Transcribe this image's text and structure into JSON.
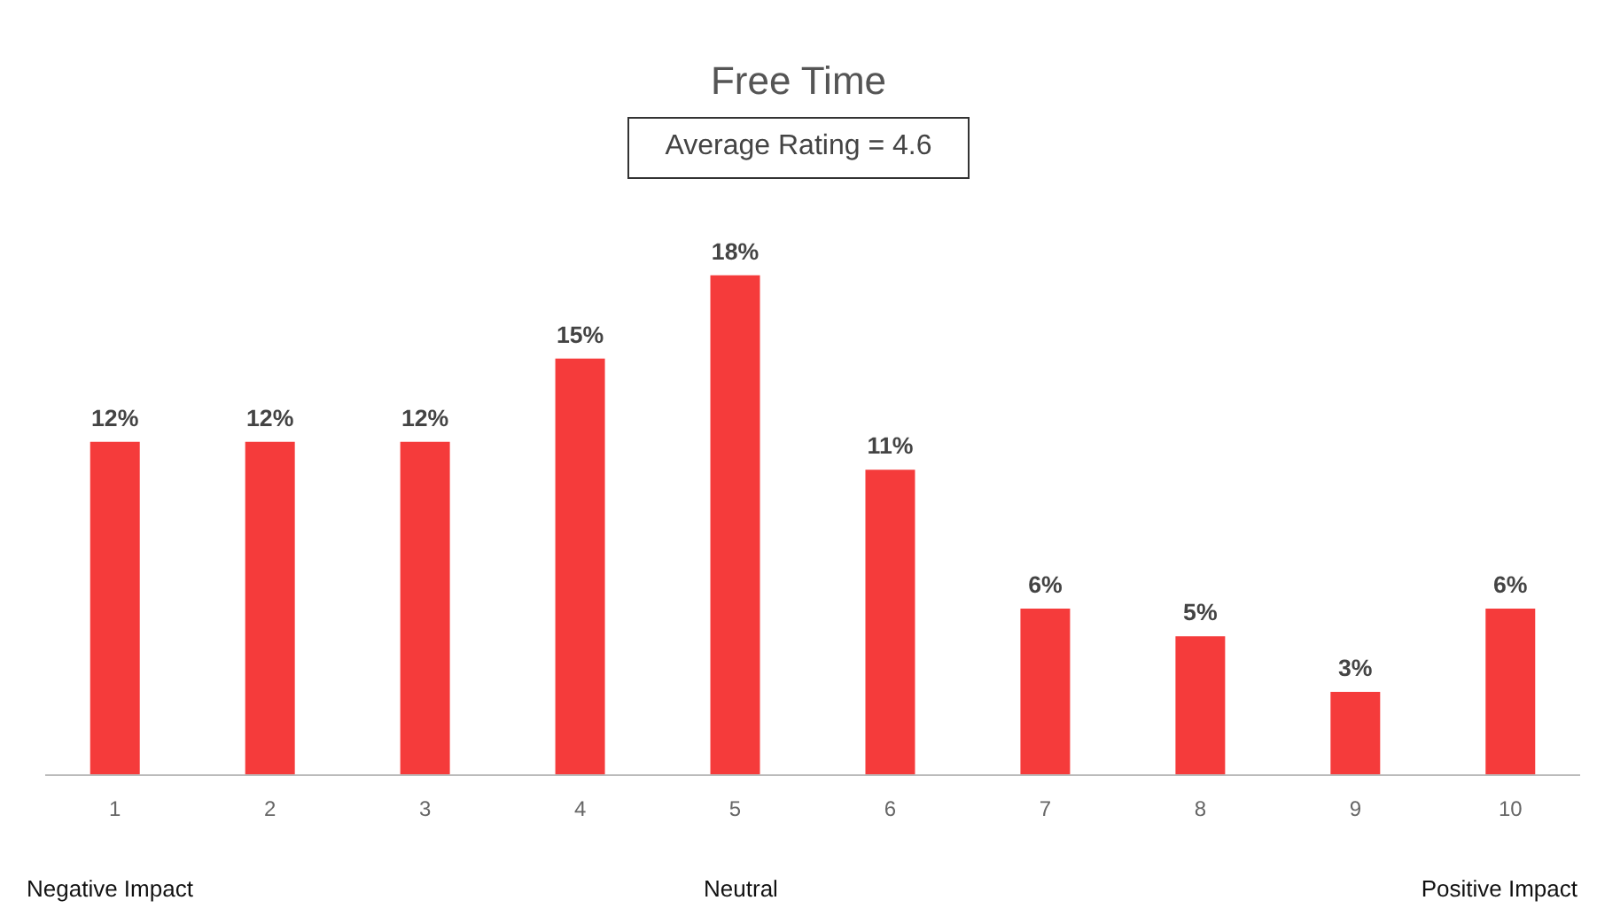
{
  "chart_data": {
    "type": "bar",
    "title": "Free Time",
    "categories": [
      "1",
      "2",
      "3",
      "4",
      "5",
      "6",
      "7",
      "8",
      "9",
      "10"
    ],
    "values": [
      12,
      12,
      12,
      15,
      18,
      11,
      6,
      5,
      3,
      6
    ],
    "value_labels": [
      "12%",
      "12%",
      "12%",
      "15%",
      "18%",
      "11%",
      "6%",
      "5%",
      "3%",
      "6%"
    ],
    "color": "#f53b3b",
    "annotations": [
      "Average Rating = 4.6",
      "Negative Impact",
      "Neutral",
      "Positive Impact"
    ],
    "grid": false
  }
}
